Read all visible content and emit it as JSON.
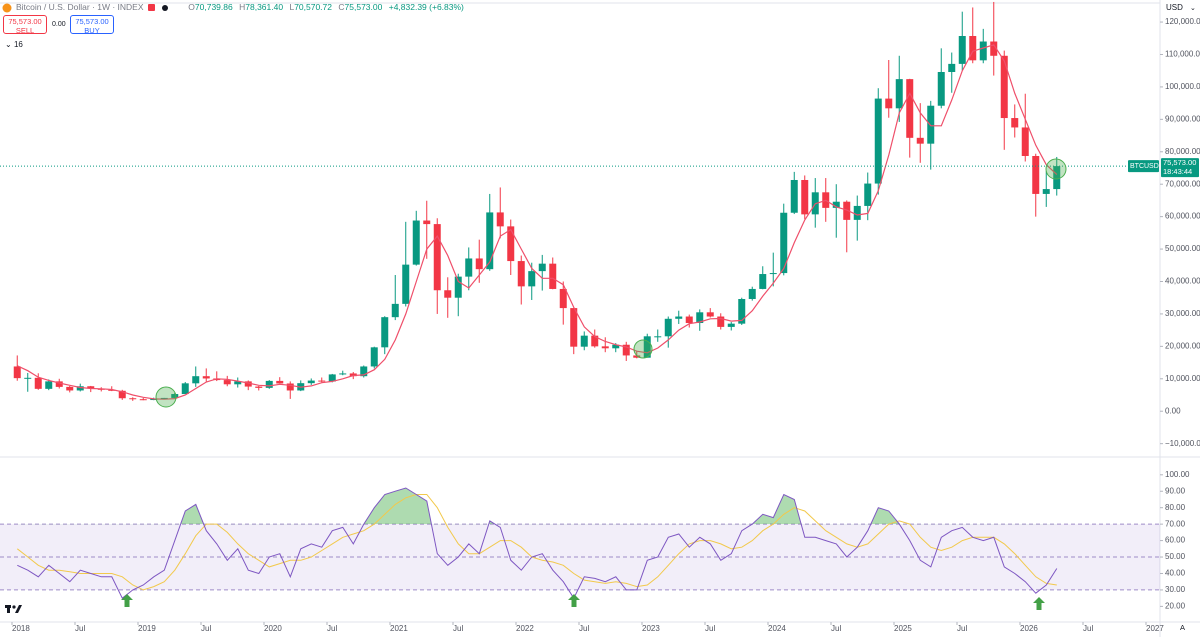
{
  "header": {
    "symbol": "Bitcoin / U.S. Dollar · 1W · INDEX",
    "ohlc": [
      {
        "key": "O",
        "value": "70,739.86"
      },
      {
        "key": "H",
        "value": "78,361.40"
      },
      {
        "key": "L",
        "value": "70,570.72"
      },
      {
        "key": "C",
        "value": "75,573.00"
      }
    ],
    "change": "+4,832.39 (+6.83%)",
    "sell": {
      "price": "75,573.00",
      "label": "SELL"
    },
    "spread": "0.00",
    "buy": {
      "price": "75,573.00",
      "label": "BUY"
    },
    "indicators_count": "16",
    "scale_mode": "A"
  },
  "chart_data": [
    {
      "type": "candlestick",
      "title": "Bitcoin / U.S. Dollar · 1W · INDEX",
      "currency": "USD",
      "symbol_label": "BTCUSD",
      "last_price_label": "75,573.00",
      "countdown": "18:43:44",
      "up_color": "#089981",
      "down_color": "#f23645",
      "x": [
        "2018-01",
        "2018-02",
        "2018-03",
        "2018-04",
        "2018-05",
        "2018-06",
        "2018-07",
        "2018-08",
        "2018-09",
        "2018-10",
        "2018-11",
        "2018-12",
        "2019-01",
        "2019-02",
        "2019-03",
        "2019-04",
        "2019-05",
        "2019-06",
        "2019-07",
        "2019-08",
        "2019-09",
        "2019-10",
        "2019-11",
        "2019-12",
        "2020-01",
        "2020-02",
        "2020-03",
        "2020-04",
        "2020-05",
        "2020-06",
        "2020-07",
        "2020-08",
        "2020-09",
        "2020-10",
        "2020-11",
        "2020-12",
        "2021-01",
        "2021-02",
        "2021-03",
        "2021-04",
        "2021-05",
        "2021-06",
        "2021-07",
        "2021-08",
        "2021-09",
        "2021-10",
        "2021-11",
        "2021-12",
        "2022-01",
        "2022-02",
        "2022-03",
        "2022-04",
        "2022-05",
        "2022-06",
        "2022-07",
        "2022-08",
        "2022-09",
        "2022-10",
        "2022-11",
        "2022-12",
        "2023-01",
        "2023-02",
        "2023-03",
        "2023-04",
        "2023-05",
        "2023-06",
        "2023-07",
        "2023-08",
        "2023-09",
        "2023-10",
        "2023-11",
        "2023-12",
        "2024-01",
        "2024-02",
        "2024-03",
        "2024-04",
        "2024-05",
        "2024-06",
        "2024-07",
        "2024-08",
        "2024-09",
        "2024-10",
        "2024-11",
        "2024-12",
        "2025-01",
        "2025-02",
        "2025-03",
        "2025-04",
        "2025-05",
        "2025-06",
        "2025-07",
        "2025-08",
        "2025-09",
        "2025-10",
        "2025-11",
        "2025-12",
        "2026-01",
        "2026-02",
        "2026-03",
        "2026-04"
      ],
      "open": [
        13800,
        10200,
        10300,
        6900,
        9200,
        7500,
        6400,
        7700,
        7000,
        6600,
        6300,
        4000,
        3700,
        3450,
        3850,
        4100,
        5300,
        8600,
        10800,
        10100,
        9600,
        8300,
        9200,
        7600,
        7200,
        9350,
        8550,
        6400,
        8650,
        9450,
        9150,
        11350,
        11650,
        10800,
        13800,
        19700,
        29000,
        33100,
        45200,
        58800,
        57700,
        37300,
        35000,
        41500,
        47100,
        43800,
        61300,
        57000,
        46300,
        38500,
        43200,
        45500,
        37700,
        31800,
        19900,
        23300,
        20000,
        19400,
        20500,
        17200,
        16500,
        23100,
        23100,
        28500,
        29200,
        27200,
        30500,
        29200,
        26000,
        27000,
        34600,
        37700,
        42300,
        42600,
        61200,
        71300,
        60700,
        67500,
        62700,
        64600,
        59000,
        63300,
        70200,
        96400,
        93400,
        102400,
        84300,
        82500,
        94200,
        104600,
        107100,
        115700,
        108200,
        114000,
        109600,
        90400,
        87500,
        78700,
        67000,
        68500
      ],
      "high": [
        17200,
        11800,
        11700,
        9800,
        10000,
        7800,
        8500,
        7800,
        7400,
        7700,
        6600,
        4300,
        4100,
        4200,
        4100,
        5600,
        9000,
        13800,
        13200,
        12300,
        10900,
        10400,
        9500,
        7800,
        9600,
        10500,
        9200,
        9500,
        10100,
        10400,
        11500,
        12500,
        12100,
        14100,
        19900,
        29300,
        42000,
        58400,
        61800,
        64900,
        59500,
        41300,
        42400,
        50500,
        52900,
        67000,
        69000,
        59100,
        48000,
        45800,
        48200,
        47400,
        40000,
        31900,
        24600,
        25200,
        22800,
        21000,
        21400,
        18400,
        23900,
        25200,
        29200,
        31000,
        29800,
        31400,
        31800,
        30200,
        27500,
        35000,
        38400,
        44700,
        48900,
        64000,
        73800,
        72700,
        71900,
        71900,
        70000,
        65000,
        66500,
        73600,
        99600,
        108300,
        109600,
        102500,
        95000,
        95700,
        111900,
        110600,
        123200,
        124500,
        117900,
        126200,
        111200,
        94600,
        97900,
        79400,
        74000,
        78400
      ],
      "low": [
        9400,
        6000,
        6600,
        6500,
        7000,
        5800,
        6100,
        5900,
        6100,
        6200,
        3500,
        3200,
        3400,
        3400,
        3700,
        4100,
        5300,
        7500,
        9100,
        9300,
        7700,
        7300,
        6500,
        6400,
        6900,
        8500,
        3800,
        6200,
        8100,
        8900,
        8900,
        11100,
        9900,
        10400,
        13200,
        17600,
        28100,
        32300,
        44900,
        47000,
        30000,
        28800,
        29300,
        37300,
        39600,
        43300,
        53300,
        42000,
        32900,
        34300,
        37200,
        37600,
        26700,
        17600,
        18800,
        19600,
        18200,
        18200,
        15500,
        16300,
        16500,
        21400,
        19600,
        26900,
        25800,
        24800,
        28900,
        25200,
        24900,
        26600,
        34100,
        37600,
        38500,
        41900,
        60800,
        59200,
        56600,
        58400,
        53500,
        49000,
        52600,
        58900,
        66800,
        90500,
        89200,
        78200,
        76600,
        74500,
        93400,
        98200,
        105100,
        107300,
        107300,
        103500,
        80600,
        84400,
        77000,
        60000,
        63000,
        66500
      ],
      "close": [
        10200,
        10300,
        6900,
        9200,
        7500,
        6400,
        7700,
        7000,
        6600,
        6300,
        4000,
        3700,
        3450,
        3850,
        4100,
        5300,
        8600,
        10800,
        10100,
        9600,
        8300,
        9200,
        7600,
        7200,
        9350,
        8550,
        6400,
        8650,
        9450,
        9150,
        11350,
        11650,
        10800,
        13800,
        19700,
        29000,
        33100,
        45200,
        58800,
        57700,
        37300,
        35000,
        41500,
        47100,
        43800,
        61300,
        57000,
        46300,
        38500,
        43200,
        45500,
        37700,
        31800,
        19900,
        23300,
        20000,
        19400,
        20500,
        17200,
        16500,
        23100,
        23100,
        28500,
        29200,
        27200,
        30500,
        29200,
        26000,
        27000,
        34600,
        37700,
        42300,
        42600,
        61200,
        71300,
        60700,
        67500,
        62700,
        64600,
        59000,
        63300,
        70200,
        96400,
        93400,
        102400,
        84300,
        82500,
        94200,
        104600,
        107100,
        115700,
        108200,
        114000,
        109600,
        90400,
        87500,
        78700,
        67000,
        68500,
        75573
      ],
      "overlays": [
        {
          "type": "line",
          "color": "#ef4f6a",
          "values": [
            14000,
            12500,
            10500,
            9500,
            8700,
            8000,
            7300,
            7000,
            6900,
            6700,
            6000,
            5000,
            4300,
            3800,
            3700,
            3900,
            5000,
            7000,
            9000,
            10000,
            9800,
            9300,
            8700,
            8000,
            7800,
            8300,
            8000,
            7400,
            7800,
            8800,
            9200,
            10000,
            11000,
            11200,
            12800,
            16000,
            22000,
            30000,
            40000,
            50000,
            54000,
            48000,
            40000,
            38000,
            42000,
            46000,
            54000,
            56000,
            50000,
            44000,
            41000,
            41000,
            39000,
            32000,
            26000,
            23000,
            21500,
            20500,
            19800,
            18500,
            18000,
            19500,
            22000,
            25000,
            27000,
            27500,
            28500,
            28600,
            27800,
            28000,
            31000,
            35500,
            39500,
            44000,
            52000,
            59000,
            64000,
            65000,
            63000,
            62000,
            60500,
            61000,
            68000,
            79000,
            92000,
            98000,
            92000,
            88000,
            88000,
            96000,
            105000,
            111000,
            112000,
            113000,
            108000,
            98000,
            90000,
            82000,
            76000,
            73000
          ]
        }
      ],
      "ylim": [
        -13500,
        126800
      ],
      "yticks": [
        {
          "value": 120000,
          "label": "120,000.00"
        },
        {
          "value": 110000,
          "label": "110,000.00"
        },
        {
          "value": 100000,
          "label": "100,000.00"
        },
        {
          "value": 90000,
          "label": "90,000.00"
        },
        {
          "value": 80000,
          "label": "80,000.00"
        },
        {
          "value": 70000,
          "label": "70,000.00"
        },
        {
          "value": 60000,
          "label": "60,000.00"
        },
        {
          "value": 50000,
          "label": "50,000.00"
        },
        {
          "value": 40000,
          "label": "40,000.00"
        },
        {
          "value": 30000,
          "label": "30,000.00"
        },
        {
          "value": 20000,
          "label": "20,000.00"
        },
        {
          "value": 10000,
          "label": "10,000.00"
        },
        {
          "value": 0,
          "label": "0.00"
        },
        {
          "value": -10000,
          "label": "−10,000.00"
        }
      ],
      "xticks": [
        {
          "value": "2018-01",
          "label": "2018"
        },
        {
          "value": "2018-07",
          "label": "Jul"
        },
        {
          "value": "2019-01",
          "label": "2019"
        },
        {
          "value": "2019-07",
          "label": "Jul"
        },
        {
          "value": "2020-01",
          "label": "2020"
        },
        {
          "value": "2020-07",
          "label": "Jul"
        },
        {
          "value": "2021-01",
          "label": "2021"
        },
        {
          "value": "2021-07",
          "label": "Jul"
        },
        {
          "value": "2022-01",
          "label": "2022"
        },
        {
          "value": "2022-07",
          "label": "Jul"
        },
        {
          "value": "2023-01",
          "label": "2023"
        },
        {
          "value": "2023-07",
          "label": "Jul"
        },
        {
          "value": "2024-01",
          "label": "2024"
        },
        {
          "value": "2024-07",
          "label": "Jul"
        },
        {
          "value": "2025-01",
          "label": "2025"
        },
        {
          "value": "2025-07",
          "label": "Jul"
        },
        {
          "value": "2026-01",
          "label": "2026"
        },
        {
          "value": "2026-07",
          "label": "Jul"
        },
        {
          "value": "2027-01",
          "label": "2027"
        }
      ]
    },
    {
      "type": "line",
      "series": [
        {
          "color": "#7e57c2",
          "values": [
            45,
            42,
            38,
            45,
            40,
            35,
            42,
            40,
            38,
            38,
            25,
            30,
            33,
            38,
            42,
            60,
            78,
            82,
            66,
            58,
            48,
            55,
            42,
            40,
            50,
            52,
            38,
            55,
            58,
            56,
            66,
            68,
            58,
            70,
            80,
            88,
            90,
            92,
            88,
            84,
            52,
            45,
            50,
            58,
            52,
            72,
            68,
            48,
            42,
            50,
            52,
            42,
            35,
            25,
            38,
            37,
            35,
            38,
            30,
            30,
            48,
            50,
            62,
            64,
            56,
            62,
            58,
            48,
            52,
            66,
            70,
            76,
            74,
            88,
            85,
            62,
            62,
            60,
            58,
            50,
            56,
            66,
            80,
            78,
            70,
            60,
            48,
            44,
            62,
            66,
            68,
            62,
            60,
            62,
            44,
            40,
            35,
            28,
            33,
            43
          ]
        },
        {
          "color": "#f2c94c",
          "values": [
            55,
            50,
            45,
            42,
            42,
            41,
            40,
            40,
            40,
            40,
            38,
            33,
            30,
            32,
            35,
            42,
            52,
            63,
            70,
            70,
            65,
            58,
            52,
            48,
            44,
            46,
            48,
            48,
            50,
            54,
            58,
            62,
            64,
            66,
            70,
            76,
            82,
            86,
            88,
            88,
            80,
            68,
            58,
            52,
            52,
            56,
            60,
            60,
            56,
            50,
            48,
            47,
            45,
            40,
            36,
            35,
            34,
            35,
            34,
            32,
            33,
            38,
            45,
            52,
            58,
            60,
            60,
            58,
            55,
            56,
            60,
            66,
            70,
            76,
            80,
            78,
            72,
            66,
            62,
            58,
            56,
            58,
            64,
            70,
            72,
            70,
            62,
            56,
            54,
            56,
            60,
            62,
            62,
            62,
            58,
            52,
            45,
            38,
            34,
            33
          ]
        }
      ],
      "levels": [
        70,
        50,
        30
      ],
      "band_color": "#7e57c2",
      "overbought_color": "#4caf50",
      "ylim": [
        10.5,
        109
      ],
      "yticks": [
        {
          "value": 100,
          "label": "100.00"
        },
        {
          "value": 90,
          "label": "90.00"
        },
        {
          "value": 80,
          "label": "80.00"
        },
        {
          "value": 70,
          "label": "70.00"
        },
        {
          "value": 60,
          "label": "60.00"
        },
        {
          "value": 50,
          "label": "50.00"
        },
        {
          "value": 40,
          "label": "40.00"
        },
        {
          "value": 30,
          "label": "30.00"
        },
        {
          "value": 20,
          "label": "20.00"
        }
      ]
    }
  ]
}
